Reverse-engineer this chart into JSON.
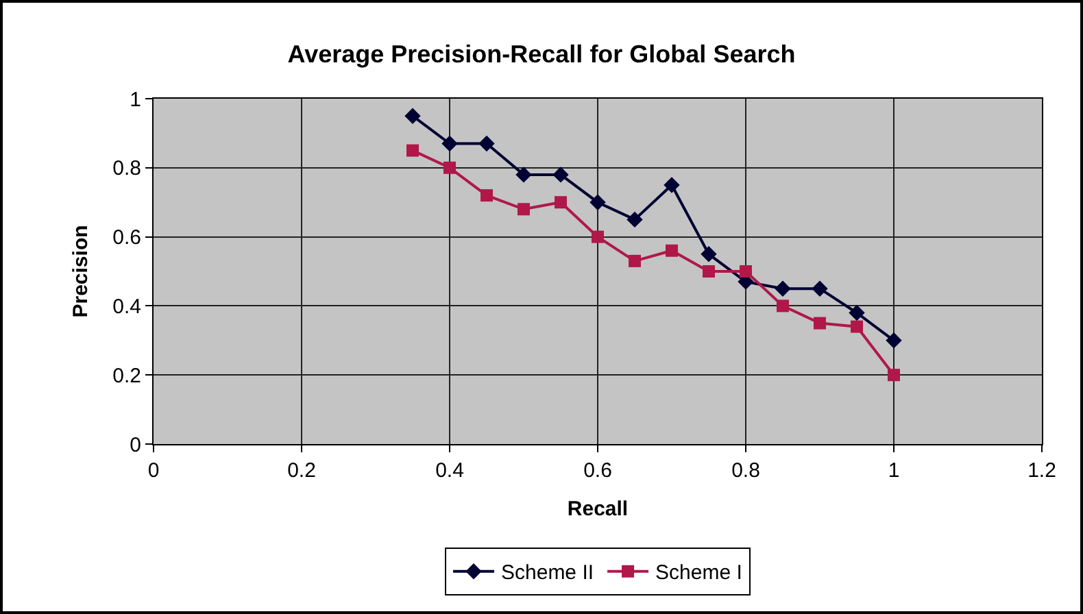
{
  "chart_data": {
    "type": "line",
    "title": "Average Precision-Recall for Global Search",
    "xlabel": "Recall",
    "ylabel": "Precision",
    "x": [
      0.35,
      0.4,
      0.45,
      0.5,
      0.55,
      0.6,
      0.65,
      0.7,
      0.75,
      0.8,
      0.85,
      0.9,
      0.95,
      1
    ],
    "series": [
      {
        "name": "Scheme II",
        "color": "#000033",
        "marker": "diamond",
        "values": [
          0.95,
          0.87,
          0.87,
          0.78,
          0.78,
          0.7,
          0.65,
          0.75,
          0.55,
          0.47,
          0.45,
          0.45,
          0.38,
          0.3
        ]
      },
      {
        "name": "Scheme I",
        "color": "#b0184a",
        "marker": "square",
        "values": [
          0.85,
          0.8,
          0.72,
          0.68,
          0.7,
          0.6,
          0.53,
          0.56,
          0.5,
          0.5,
          0.4,
          0.35,
          0.34,
          0.2
        ]
      }
    ],
    "xlim": [
      0,
      1.2
    ],
    "xticks": [
      0,
      0.2,
      0.4,
      0.6,
      0.8,
      1,
      1.2
    ],
    "ylim": [
      0,
      1
    ],
    "yticks": [
      0,
      0.2,
      0.4,
      0.6,
      0.8,
      1
    ],
    "grid": true,
    "legend": "bottom",
    "line_style": "solid"
  }
}
